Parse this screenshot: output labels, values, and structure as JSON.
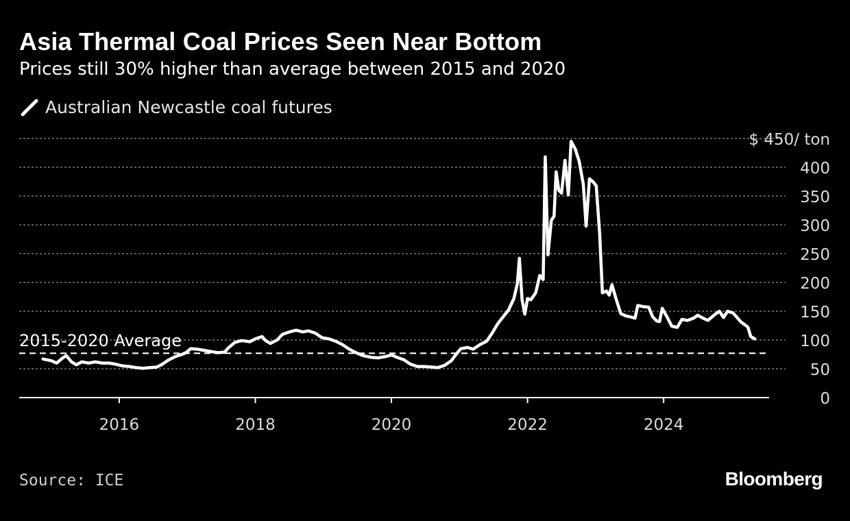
{
  "header": {
    "title": "Asia Thermal Coal Prices Seen Near Bottom",
    "subtitle": "Prices still 30% higher than average between 2015 and 2020"
  },
  "legend": {
    "label": "Australian Newcastle coal futures"
  },
  "footer": {
    "source": "Source: ICE",
    "brand": "Bloomberg"
  },
  "colors": {
    "background": "#000000",
    "line": "#ffffff",
    "grid": "#7a7a7a",
    "axis_text": "#dcdcdc"
  },
  "chart_data": {
    "type": "line",
    "title": "Asia Thermal Coal Prices Seen Near Bottom",
    "subtitle": "Prices still 30% higher than average between 2015 and 2020",
    "xlabel": "",
    "ylabel": "$ / ton",
    "xlim": [
      2014.53,
      2025.55
    ],
    "ylim": [
      0,
      450
    ],
    "y_ticks": [
      0,
      50,
      100,
      150,
      200,
      250,
      300,
      350,
      400,
      450
    ],
    "y_tick_labels": [
      "0",
      "50",
      "100",
      "150",
      "200",
      "250",
      "300",
      "350",
      "400",
      "$ 450/ ton"
    ],
    "x_ticks": [
      2016,
      2018,
      2020,
      2022,
      2024
    ],
    "x_tick_labels": [
      "2016",
      "2018",
      "2020",
      "2022",
      "2024"
    ],
    "grid": true,
    "legend_position": "top-left",
    "reference_line": {
      "label": "2015-2020 Average",
      "value": 77
    },
    "series": [
      {
        "name": "Australian Newcastle coal futures",
        "points": [
          [
            2014.88,
            67
          ],
          [
            2015.0,
            64
          ],
          [
            2015.08,
            60
          ],
          [
            2015.16,
            68
          ],
          [
            2015.22,
            73
          ],
          [
            2015.3,
            62
          ],
          [
            2015.37,
            57
          ],
          [
            2015.45,
            62
          ],
          [
            2015.55,
            60
          ],
          [
            2015.65,
            62
          ],
          [
            2015.75,
            60
          ],
          [
            2015.85,
            60
          ],
          [
            2015.95,
            58
          ],
          [
            2016.05,
            55
          ],
          [
            2016.15,
            54
          ],
          [
            2016.25,
            52
          ],
          [
            2016.35,
            51
          ],
          [
            2016.45,
            52
          ],
          [
            2016.55,
            53
          ],
          [
            2016.62,
            57
          ],
          [
            2016.72,
            65
          ],
          [
            2016.82,
            71
          ],
          [
            2016.92,
            75
          ],
          [
            2016.98,
            78
          ],
          [
            2017.05,
            85
          ],
          [
            2017.15,
            84
          ],
          [
            2017.25,
            82
          ],
          [
            2017.35,
            80
          ],
          [
            2017.45,
            78
          ],
          [
            2017.55,
            79
          ],
          [
            2017.6,
            86
          ],
          [
            2017.7,
            96
          ],
          [
            2017.8,
            99
          ],
          [
            2017.92,
            97
          ],
          [
            2018.0,
            102
          ],
          [
            2018.1,
            106
          ],
          [
            2018.15,
            99
          ],
          [
            2018.22,
            94
          ],
          [
            2018.32,
            100
          ],
          [
            2018.4,
            110
          ],
          [
            2018.5,
            114
          ],
          [
            2018.6,
            117
          ],
          [
            2018.7,
            114
          ],
          [
            2018.78,
            116
          ],
          [
            2018.88,
            112
          ],
          [
            2018.98,
            104
          ],
          [
            2019.08,
            102
          ],
          [
            2019.18,
            98
          ],
          [
            2019.28,
            92
          ],
          [
            2019.38,
            84
          ],
          [
            2019.48,
            78
          ],
          [
            2019.58,
            73
          ],
          [
            2019.7,
            70
          ],
          [
            2019.8,
            69
          ],
          [
            2019.9,
            71
          ],
          [
            2020.0,
            74
          ],
          [
            2020.08,
            70
          ],
          [
            2020.18,
            66
          ],
          [
            2020.28,
            58
          ],
          [
            2020.38,
            54
          ],
          [
            2020.48,
            54
          ],
          [
            2020.6,
            53
          ],
          [
            2020.68,
            52
          ],
          [
            2020.78,
            56
          ],
          [
            2020.88,
            64
          ],
          [
            2020.95,
            75
          ],
          [
            2021.02,
            85
          ],
          [
            2021.12,
            87
          ],
          [
            2021.2,
            84
          ],
          [
            2021.3,
            92
          ],
          [
            2021.4,
            98
          ],
          [
            2021.48,
            112
          ],
          [
            2021.56,
            128
          ],
          [
            2021.64,
            140
          ],
          [
            2021.72,
            152
          ],
          [
            2021.8,
            172
          ],
          [
            2021.85,
            198
          ],
          [
            2021.88,
            242
          ],
          [
            2021.92,
            170
          ],
          [
            2021.96,
            145
          ],
          [
            2022.0,
            172
          ],
          [
            2022.05,
            170
          ],
          [
            2022.12,
            182
          ],
          [
            2022.18,
            212
          ],
          [
            2022.23,
            205
          ],
          [
            2022.26,
            418
          ],
          [
            2022.3,
            248
          ],
          [
            2022.35,
            308
          ],
          [
            2022.39,
            315
          ],
          [
            2022.42,
            392
          ],
          [
            2022.46,
            360
          ],
          [
            2022.5,
            355
          ],
          [
            2022.55,
            412
          ],
          [
            2022.6,
            352
          ],
          [
            2022.64,
            445
          ],
          [
            2022.7,
            432
          ],
          [
            2022.76,
            410
          ],
          [
            2022.82,
            370
          ],
          [
            2022.86,
            298
          ],
          [
            2022.91,
            380
          ],
          [
            2022.96,
            375
          ],
          [
            2023.01,
            368
          ],
          [
            2023.06,
            285
          ],
          [
            2023.1,
            182
          ],
          [
            2023.16,
            185
          ],
          [
            2023.2,
            178
          ],
          [
            2023.24,
            196
          ],
          [
            2023.3,
            172
          ],
          [
            2023.37,
            146
          ],
          [
            2023.44,
            142
          ],
          [
            2023.52,
            140
          ],
          [
            2023.58,
            138
          ],
          [
            2023.62,
            160
          ],
          [
            2023.7,
            158
          ],
          [
            2023.78,
            157
          ],
          [
            2023.84,
            140
          ],
          [
            2023.9,
            133
          ],
          [
            2023.94,
            132
          ],
          [
            2023.98,
            155
          ],
          [
            2024.05,
            140
          ],
          [
            2024.12,
            124
          ],
          [
            2024.2,
            122
          ],
          [
            2024.27,
            136
          ],
          [
            2024.35,
            134
          ],
          [
            2024.44,
            138
          ],
          [
            2024.5,
            143
          ],
          [
            2024.58,
            138
          ],
          [
            2024.65,
            134
          ],
          [
            2024.75,
            144
          ],
          [
            2024.82,
            150
          ],
          [
            2024.88,
            139
          ],
          [
            2024.94,
            150
          ],
          [
            2025.02,
            147
          ],
          [
            2025.08,
            139
          ],
          [
            2025.14,
            131
          ],
          [
            2025.2,
            126
          ],
          [
            2025.24,
            122
          ],
          [
            2025.28,
            106
          ],
          [
            2025.34,
            102
          ]
        ]
      }
    ]
  }
}
